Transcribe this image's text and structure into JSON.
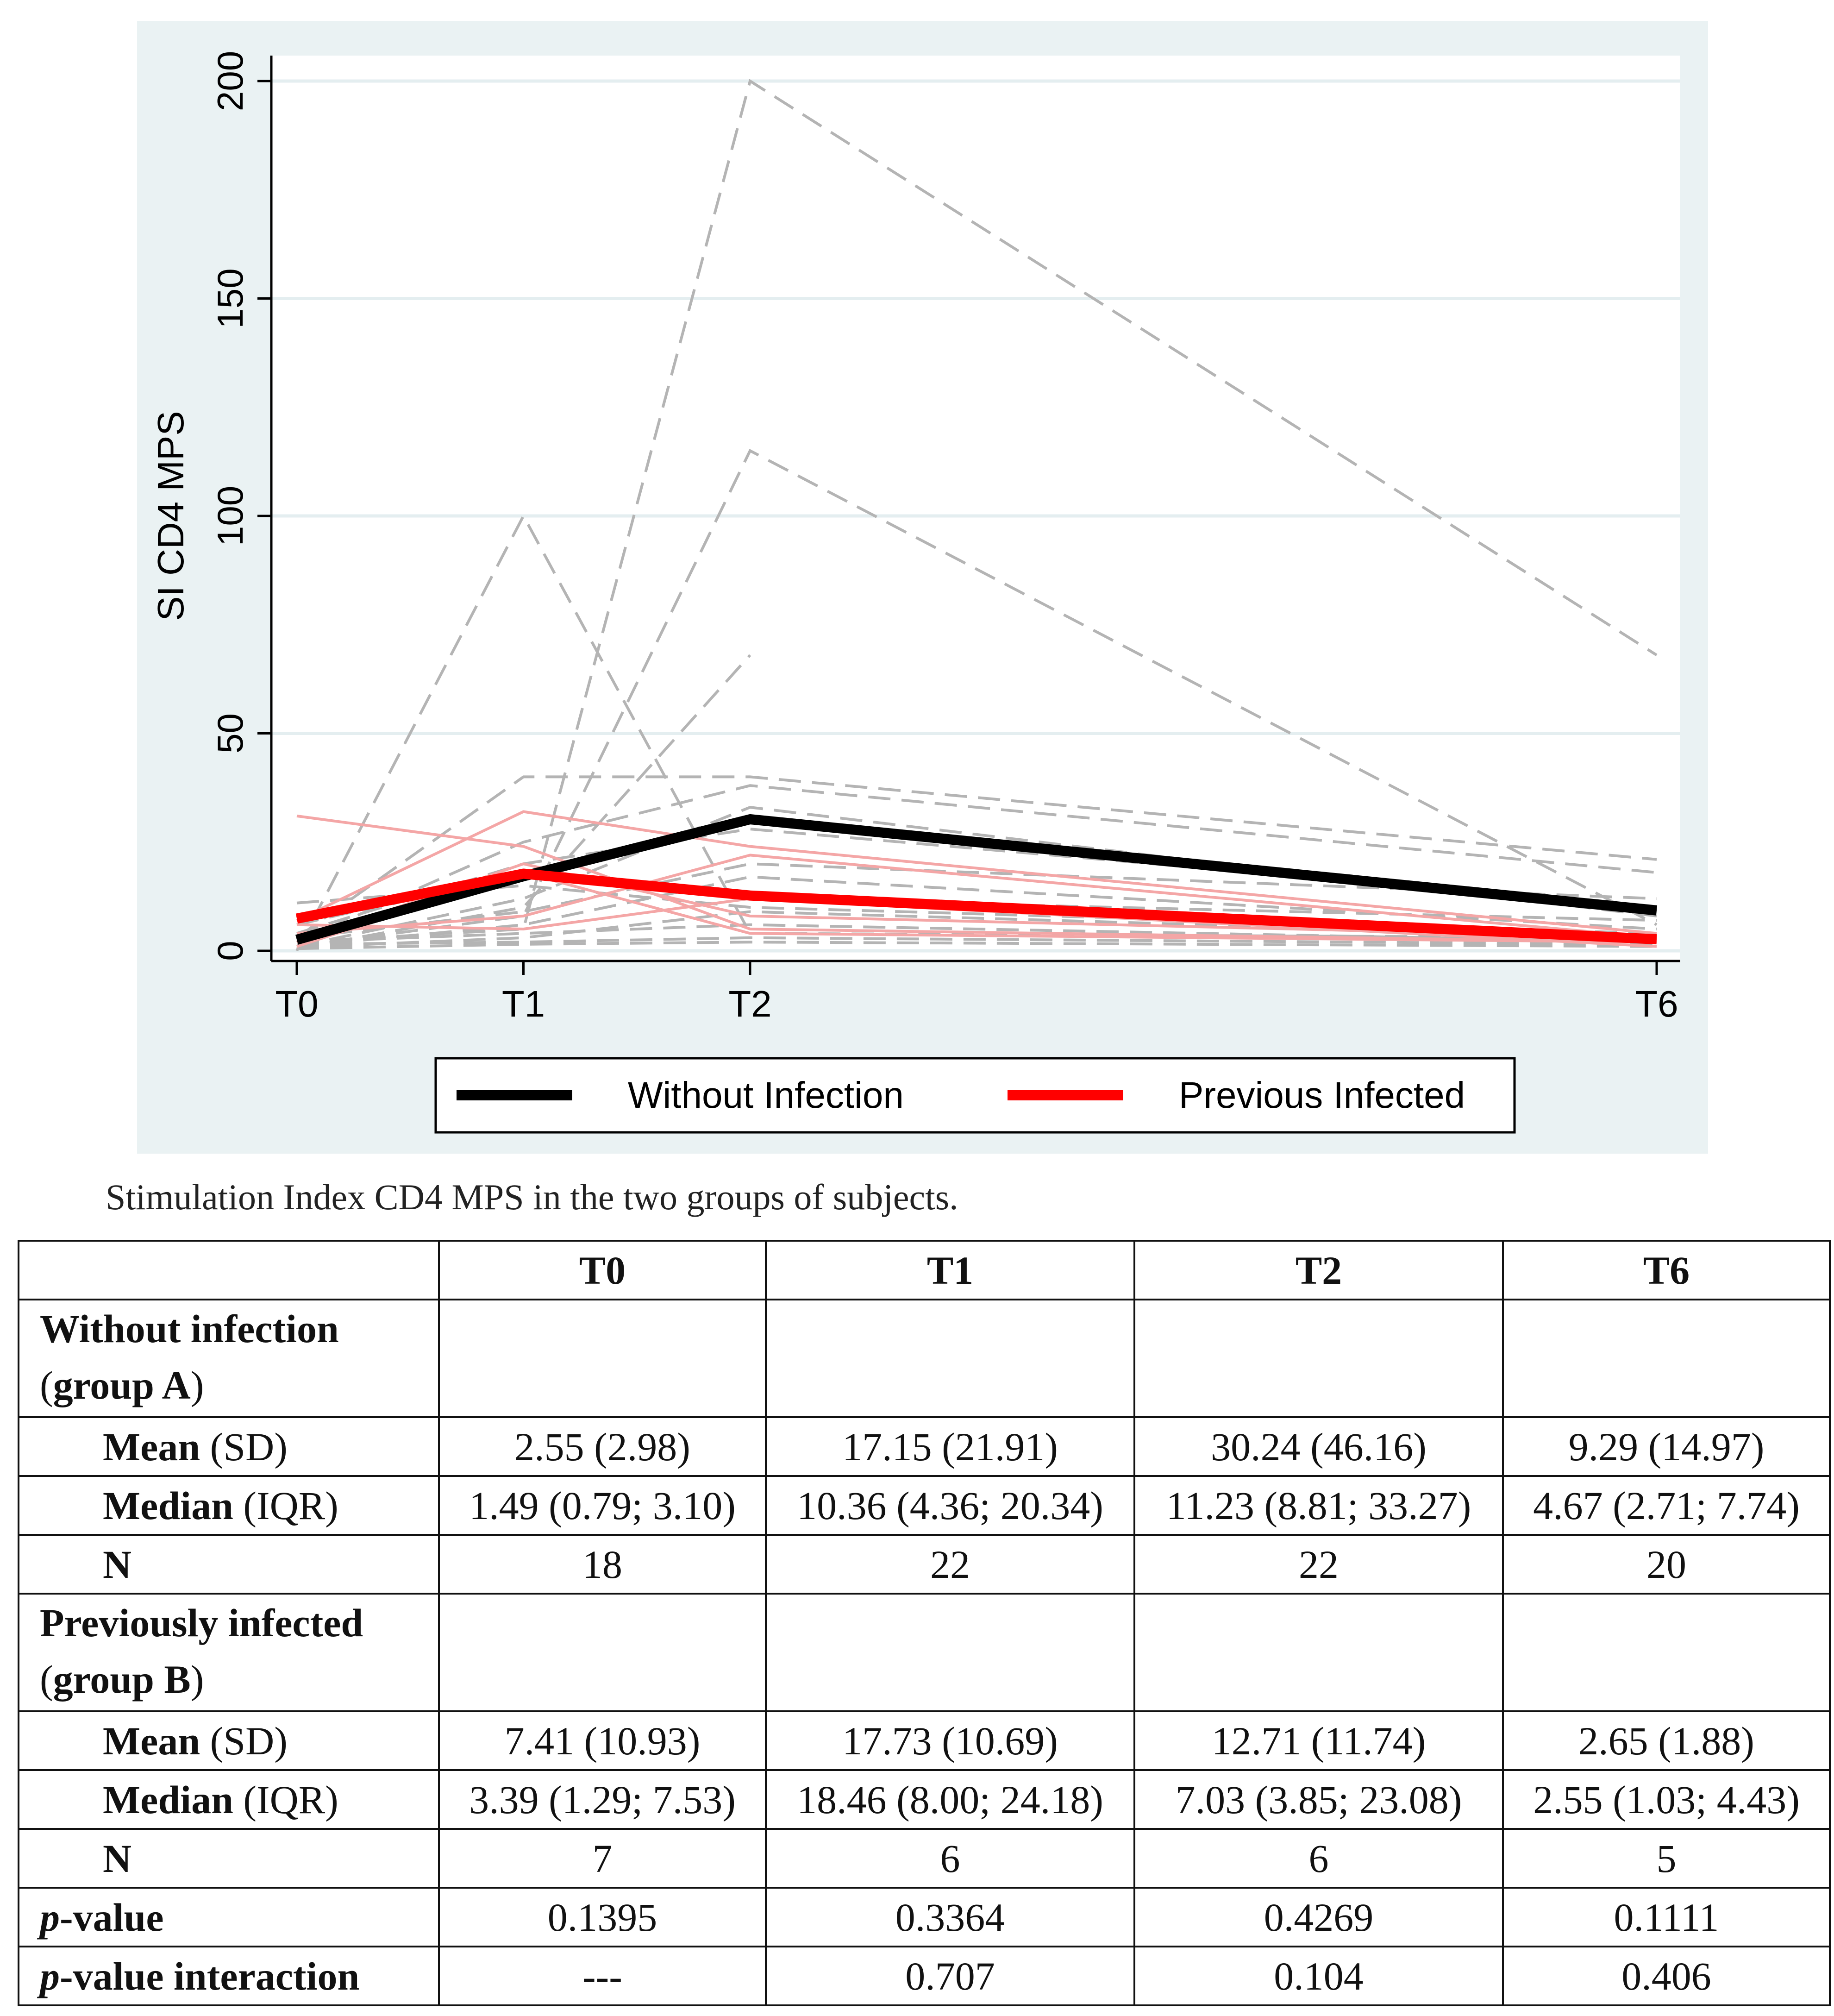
{
  "chart_data": {
    "type": "line",
    "title": "",
    "xlabel": "",
    "ylabel": "SI CD4 MPS",
    "x": [
      "T0",
      "T1",
      "T2",
      "T6"
    ],
    "x_positions": [
      0,
      1,
      2,
      6
    ],
    "ylim": [
      0,
      200
    ],
    "yticks": [
      0,
      50,
      100,
      150,
      200
    ],
    "grid": true,
    "legend_position": "bottom",
    "series": [
      {
        "name": "Without Infection",
        "values": [
          2.55,
          17.15,
          30.24,
          9.29
        ],
        "color": "#000000",
        "style": "mean"
      },
      {
        "name": "Previous Infected",
        "values": [
          7.41,
          17.73,
          12.71,
          2.65
        ],
        "color": "#ff0000",
        "style": "mean"
      }
    ],
    "individual_without_infection": [
      [
        0,
        100,
        4,
        3
      ],
      [
        2,
        5,
        200,
        68
      ],
      [
        1,
        8,
        115,
        6
      ],
      [
        3,
        40,
        40,
        21
      ],
      [
        0.5,
        10,
        68,
        null
      ],
      [
        2,
        25,
        38,
        18
      ],
      [
        1,
        12,
        33,
        8
      ],
      [
        4,
        20,
        28,
        10
      ],
      [
        1,
        6,
        17,
        5
      ],
      [
        11,
        15,
        10,
        4
      ],
      [
        0.8,
        3,
        9,
        3
      ],
      [
        2,
        4,
        6,
        2
      ],
      [
        1.5,
        2,
        3,
        1.5
      ],
      [
        0.5,
        1.5,
        2,
        1
      ],
      [
        6,
        18,
        12,
        7
      ],
      [
        3,
        9,
        20,
        12
      ]
    ],
    "individual_previous_infected": [
      [
        31,
        24,
        5,
        2
      ],
      [
        7,
        32,
        24,
        4
      ],
      [
        2,
        20,
        8,
        3
      ],
      [
        1,
        18,
        4,
        2
      ],
      [
        4,
        8,
        22,
        3
      ],
      [
        6,
        5,
        12,
        1
      ]
    ],
    "colors": {
      "individual_a": "#b4b4b4",
      "individual_b": "#f4a6a6",
      "panel": "#eaf2f3",
      "plot": "#ffffff",
      "grid": "#e4eef0"
    }
  },
  "caption": "Stimulation Index CD4 MPS in the two groups of subjects.",
  "table": {
    "headers": [
      "T0",
      "T1",
      "T2",
      "T6"
    ],
    "group_a": {
      "label_line1": "Without infection",
      "label_line2_open": "(",
      "label_line2_bold": "group A",
      "label_line2_close": ")",
      "mean_label": "Mean",
      "mean_paren": "(SD)",
      "median_label": "Median",
      "median_paren": "(IQR)",
      "n_label": "N",
      "mean": [
        "2.55 (2.98)",
        "17.15 (21.91)",
        "30.24 (46.16)",
        "9.29 (14.97)"
      ],
      "median": [
        "1.49 (0.79; 3.10)",
        "10.36 (4.36; 20.34)",
        "11.23 (8.81; 33.27)",
        "4.67 (2.71; 7.74)"
      ],
      "n": [
        "18",
        "22",
        "22",
        "20"
      ]
    },
    "group_b": {
      "label_line1": "Previously infected",
      "label_line2_open": "(",
      "label_line2_bold": "group B",
      "label_line2_close": ")",
      "mean_label": "Mean",
      "mean_paren": "(SD)",
      "median_label": "Median",
      "median_paren": "(IQR)",
      "n_label": "N",
      "mean": [
        "7.41 (10.93)",
        "17.73 (10.69)",
        "12.71 (11.74)",
        "2.65 (1.88)"
      ],
      "median": [
        "3.39 (1.29; 7.53)",
        "18.46 (8.00; 24.18)",
        "7.03 (3.85; 23.08)",
        "2.55 (1.03; 4.43)"
      ],
      "n": [
        "7",
        "6",
        "6",
        "5"
      ]
    },
    "pvalue": {
      "label_italic": "p",
      "label_rest": "-value",
      "values": [
        "0.1395",
        "0.3364",
        "0.4269",
        "0.1111"
      ]
    },
    "pvalue_interaction": {
      "label_italic": "p",
      "label_rest": "-value interaction",
      "values": [
        "---",
        "0.707",
        "0.104",
        "0.406"
      ]
    }
  }
}
